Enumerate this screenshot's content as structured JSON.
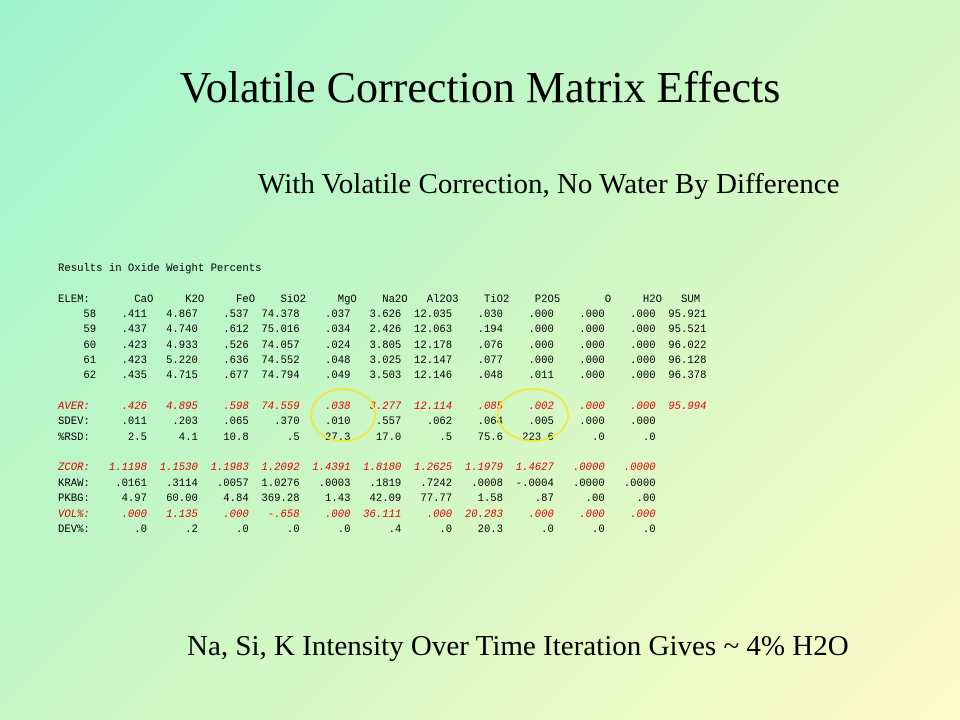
{
  "slide": {
    "title": "Volatile Correction Matrix Effects",
    "subtitle": "With Volatile Correction, No Water By Difference",
    "footer": "Na, Si, K Intensity Over Time Iteration Gives ~ 4% H2O"
  },
  "colors": {
    "highlight_rows": "#e00000",
    "circle": "#f2e64a"
  },
  "table_rows": [
    {
      "text": "Results in Oxide Weight Percents",
      "style": "normal"
    },
    {
      "text": "",
      "style": "normal"
    },
    {
      "text": "ELEM:       CaO     K2O     FeO    SiO2     MgO    Na2O   Al2O3    TiO2    P2O5       O     H2O   SUM",
      "style": "normal"
    },
    {
      "text": "    58    .411   4.867    .537  74.378    .037   3.626  12.035    .030    .000    .000    .000  95.921",
      "style": "normal"
    },
    {
      "text": "    59    .437   4.740    .612  75.016    .034   2.426  12.063    .194    .000    .000    .000  95.521",
      "style": "normal"
    },
    {
      "text": "    60    .423   4.933    .526  74.057    .024   3.805  12.178    .076    .000    .000    .000  96.022",
      "style": "normal"
    },
    {
      "text": "    61    .423   5.220    .636  74.552    .048   3.025  12.147    .077    .000    .000    .000  96.128",
      "style": "normal"
    },
    {
      "text": "    62    .435   4.715    .677  74.794    .049   3.503  12.146    .048    .011    .000    .000  96.378",
      "style": "normal"
    },
    {
      "text": "",
      "style": "normal"
    },
    {
      "text": "AVER:     .426   4.895    .598  74.559    .038   3.277  12.114    .085    .002    .000    .000  95.994",
      "style": "red"
    },
    {
      "text": "SDEV:     .011    .203    .065    .370    .010    .557    .062    .064    .005    .000    .000",
      "style": "normal"
    },
    {
      "text": "%RSD:      2.5     4.1    10.8      .5    27.3    17.0      .5    75.6   223.6      .0      .0",
      "style": "normal"
    },
    {
      "text": "",
      "style": "normal"
    },
    {
      "text": "ZCOR:   1.1198  1.1530  1.1983  1.2092  1.4391  1.8180  1.2625  1.1979  1.4627   .0000   .0000",
      "style": "red"
    },
    {
      "text": "KRAW:    .0161   .3114   .0057  1.0276   .0003   .1819   .7242   .0008  -.0004   .0000   .0000",
      "style": "normal"
    },
    {
      "text": "PKBG:     4.97   60.00    4.84  369.28    1.43   42.09   77.77    1.58     .87     .00     .00",
      "style": "normal"
    },
    {
      "text": "VOL%:     .000   1.135    .000   -.658    .000  36.111    .000  20.283    .000    .000    .000",
      "style": "red"
    },
    {
      "text": "DEV%:       .0      .2      .0      .0      .0      .4      .0    20.3      .0      .0      .0",
      "style": "normal"
    }
  ]
}
